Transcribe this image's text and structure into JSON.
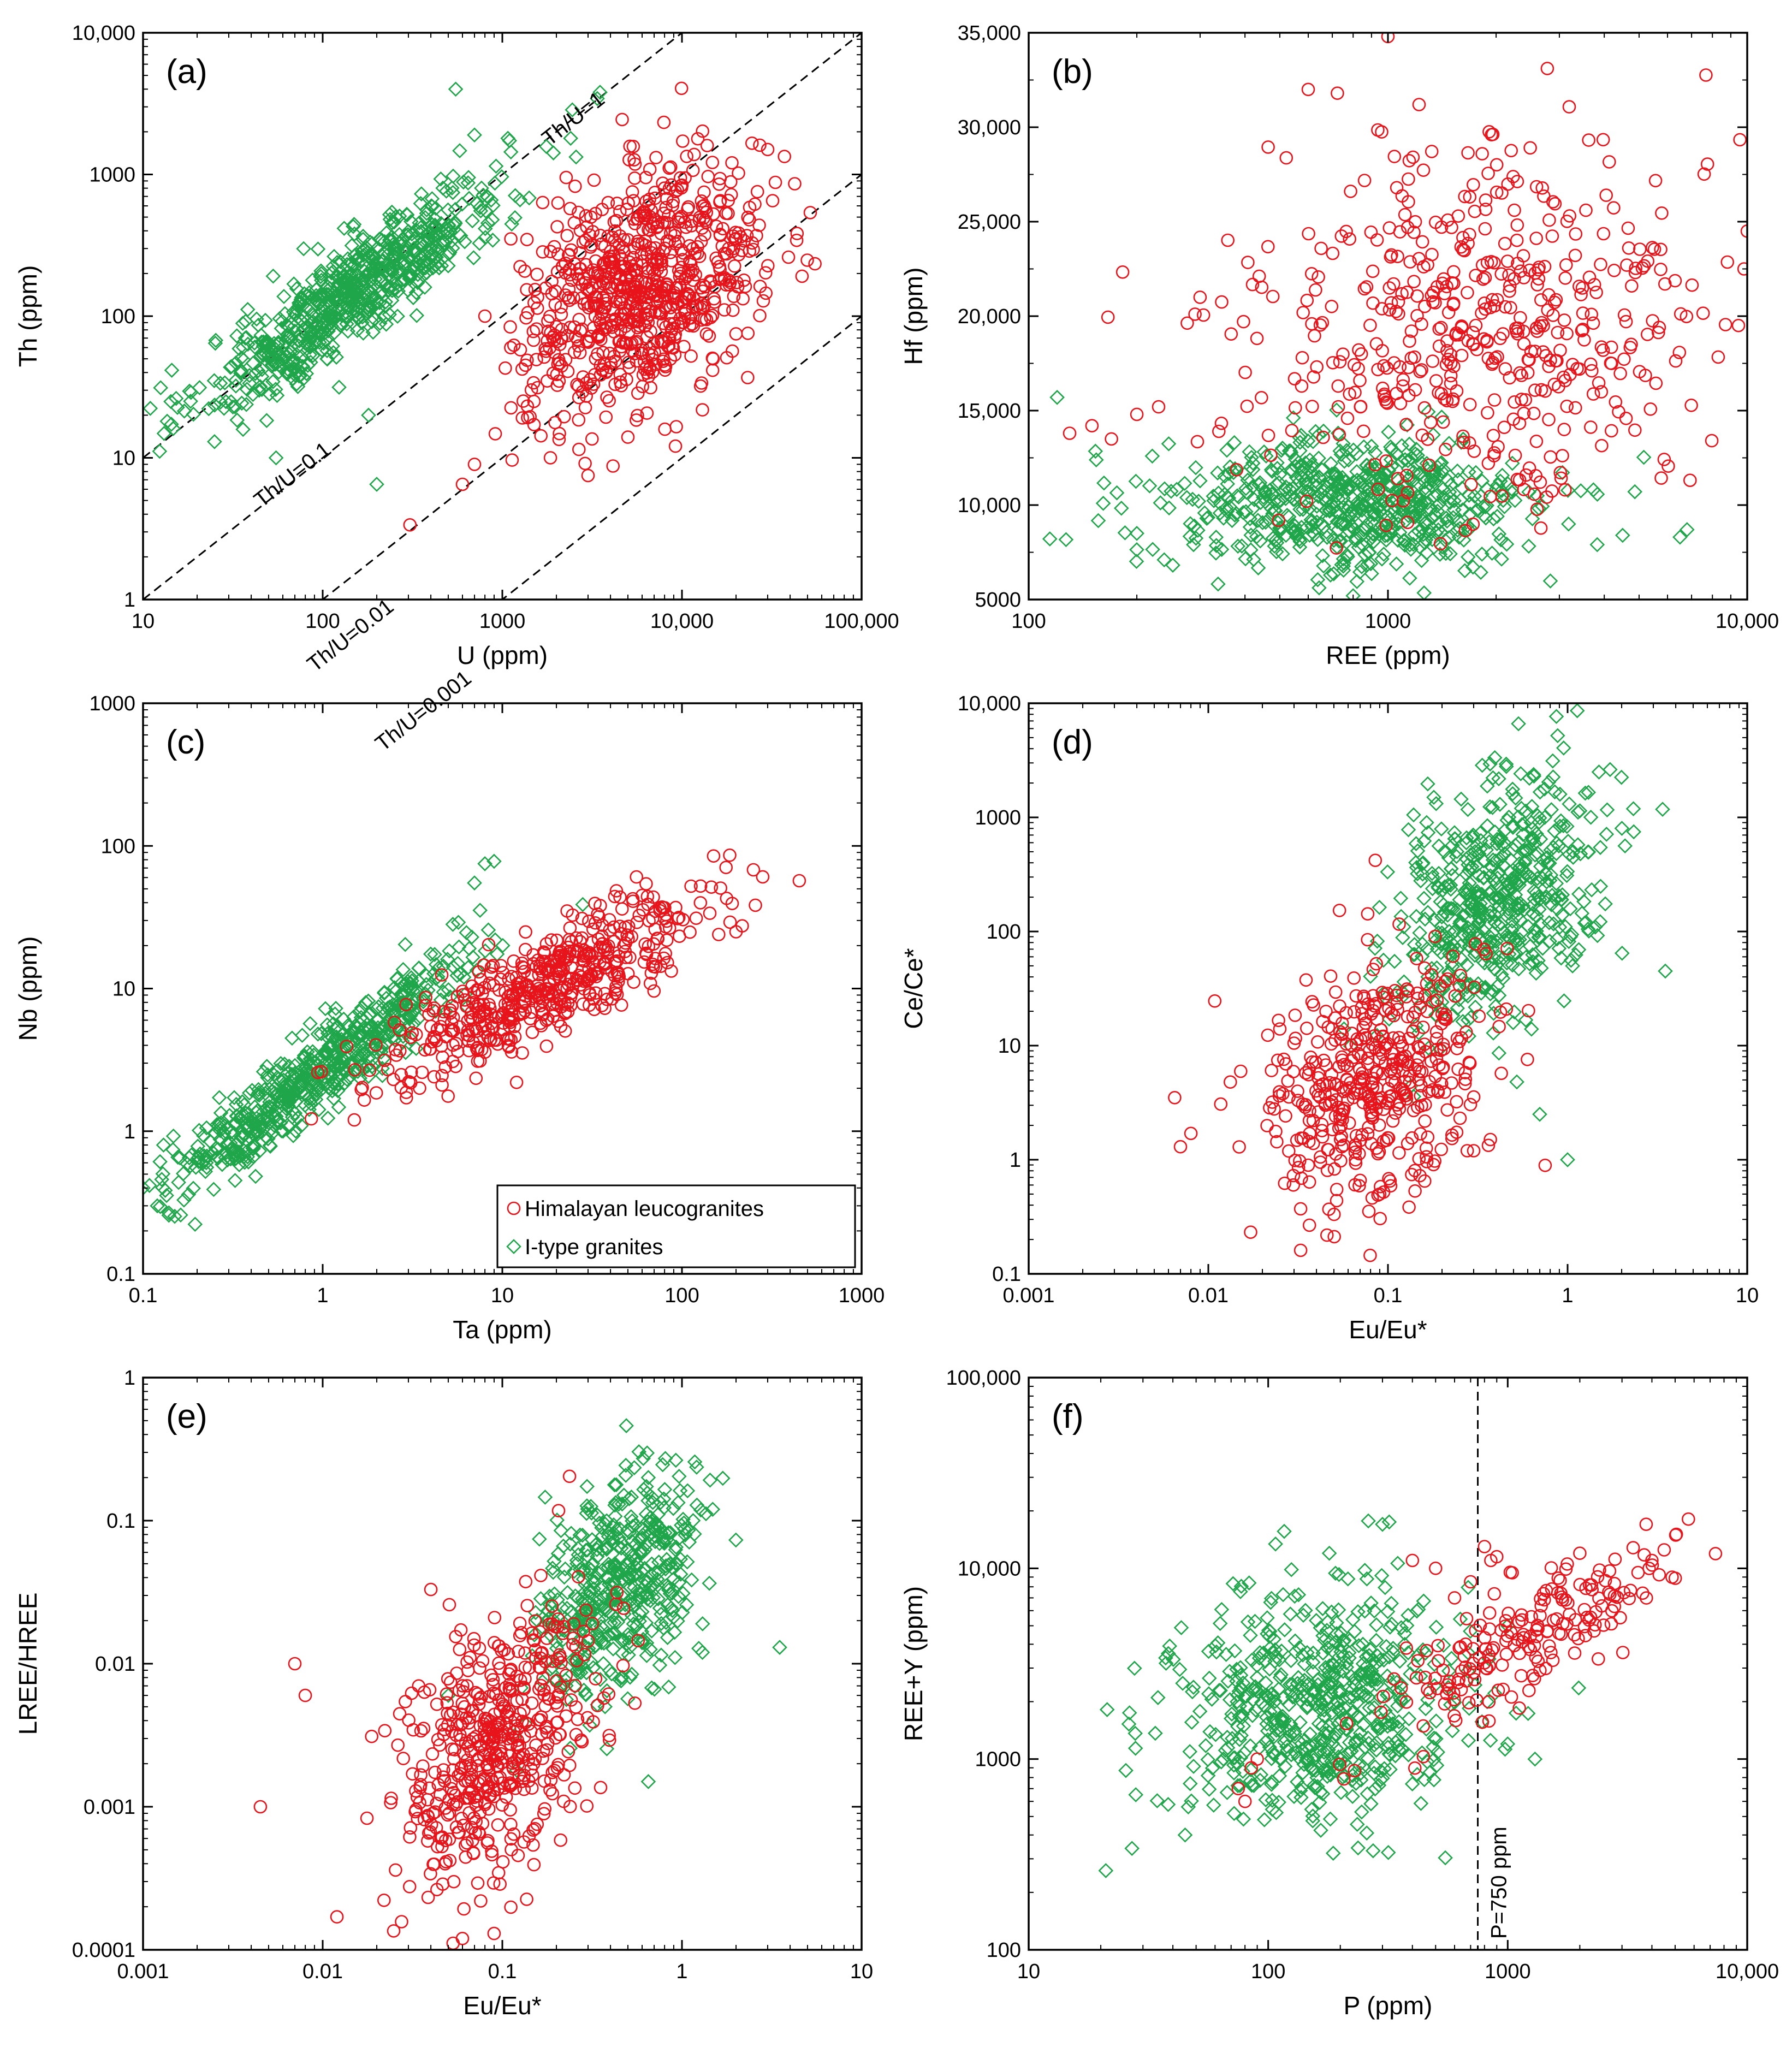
{
  "colors": {
    "himalayan": "#e8141b",
    "itype": "#1fa64a",
    "axis": "#000000",
    "background": "#ffffff"
  },
  "legend": {
    "panel": "c",
    "placement": "bottom-right",
    "items": [
      {
        "label": "Himalayan leucogranites",
        "marker": "circle",
        "color": "#e8141b"
      },
      {
        "label": "I-type granites",
        "marker": "diamond",
        "color": "#1fa64a"
      }
    ]
  },
  "chart_data": [
    {
      "id": "a",
      "type": "scatter",
      "tag": "(a)",
      "xlabel": "U (ppm)",
      "ylabel": "Th (ppm)",
      "xscale": "log",
      "yscale": "log",
      "xlim": [
        10,
        100000
      ],
      "ylim": [
        1,
        10000
      ],
      "xticks": [
        10,
        100,
        1000,
        10000,
        100000
      ],
      "xtick_labels": [
        "10",
        "100",
        "1000",
        "10,000",
        "100,000"
      ],
      "yticks": [
        1,
        10,
        100,
        1000,
        10000
      ],
      "ytick_labels": [
        "1",
        "10",
        "100",
        "1000",
        "10,000"
      ],
      "reference_lines": [
        {
          "label": "Th/U=1",
          "ratio": 1
        },
        {
          "label": "Th/U=0.1",
          "ratio": 0.1
        },
        {
          "label": "Th/U=0.01",
          "ratio": 0.01
        },
        {
          "label": "Th/U=0.001",
          "ratio": 0.001
        }
      ],
      "series": [
        {
          "name": "Himalayan leucogranites",
          "marker": "circle",
          "n": 800,
          "cluster": {
            "x_center": 6000,
            "y_center": 160,
            "x_log_sd": 0.33,
            "y_log_sd": 0.42,
            "corr": 0.35
          },
          "points": [
            [
              3000,
              7.5
            ],
            [
              700,
              9
            ],
            [
              600,
              6.5
            ],
            [
              5000,
              14
            ],
            [
              30000,
              1500
            ],
            [
              20000,
              75
            ],
            [
              1500,
              25
            ],
            [
              800,
              100
            ]
          ]
        },
        {
          "name": "I-type granites",
          "marker": "diamond",
          "n": 700,
          "cluster": {
            "x_center": 150,
            "y_center": 150,
            "x_log_sd": 0.42,
            "y_log_sd": 0.42,
            "corr": 0.9
          },
          "points": [
            [
              3500,
              3800
            ],
            [
              2400,
              1800
            ],
            [
              550,
              4000
            ],
            [
              700,
              1900
            ],
            [
              25,
              13
            ],
            [
              55,
              10
            ],
            [
              200,
              6.5
            ],
            [
              180,
              20
            ]
          ]
        }
      ]
    },
    {
      "id": "b",
      "type": "scatter",
      "tag": "(b)",
      "xlabel": "REE (ppm)",
      "ylabel": "Hf (ppm)",
      "xscale": "log",
      "yscale": "linear",
      "xlim": [
        100,
        10000
      ],
      "ylim": [
        5000,
        35000
      ],
      "xticks": [
        100,
        1000,
        10000
      ],
      "xtick_labels": [
        "100",
        "1000",
        "10,000"
      ],
      "yticks": [
        5000,
        10000,
        15000,
        20000,
        25000,
        30000,
        35000
      ],
      "ytick_labels": [
        "5000",
        "10,000",
        "15,000",
        "20,000",
        "25,000",
        "30,000",
        "35,000"
      ],
      "series": [
        {
          "name": "Himalayan leucogranites",
          "marker": "circle",
          "n": 520,
          "cluster": {
            "x_center": 1900,
            "y_center": 19500,
            "x_log_sd": 0.32,
            "y_sd": 4800
          },
          "points": [
            [
              130,
              13800
            ],
            [
              150,
              14200
            ],
            [
              170,
              13500
            ],
            [
              200,
              14800
            ],
            [
              230,
              15200
            ],
            [
              1000,
              34800
            ],
            [
              10000,
              24500
            ],
            [
              9800,
              22500
            ],
            [
              600,
              32000
            ],
            [
              300,
              21000
            ]
          ]
        },
        {
          "name": "I-type granites",
          "marker": "diamond",
          "n": 650,
          "cluster": {
            "x_center": 780,
            "y_center": 10000,
            "x_log_sd": 0.26,
            "y_sd": 1800
          },
          "points": [
            [
              120,
              15700
            ],
            [
              6800,
              8700
            ],
            [
              6500,
              8300
            ],
            [
              800,
              5200
            ],
            [
              200,
              8500
            ],
            [
              4500,
              8400
            ]
          ]
        }
      ]
    },
    {
      "id": "c",
      "type": "scatter",
      "tag": "(c)",
      "xlabel": "Ta (ppm)",
      "ylabel": "Nb (ppm)",
      "xscale": "log",
      "yscale": "log",
      "xlim": [
        0.1,
        1000
      ],
      "ylim": [
        0.1,
        1000
      ],
      "xticks": [
        0.1,
        1,
        10,
        100,
        1000
      ],
      "xtick_labels": [
        "0.1",
        "1",
        "10",
        "100",
        "1000"
      ],
      "yticks": [
        0.1,
        1,
        10,
        100,
        1000
      ],
      "ytick_labels": [
        "0.1",
        "1",
        "10",
        "100",
        "1000"
      ],
      "series": [
        {
          "name": "Himalayan leucogranites",
          "marker": "circle",
          "n": 520,
          "cluster": {
            "x_center": 18,
            "y_center": 11,
            "x_log_sd": 0.45,
            "y_log_sd": 0.32,
            "corr": 0.85
          },
          "points": [
            [
              450,
              57
            ],
            [
              250,
              68
            ],
            [
              150,
              85
            ],
            [
              1.5,
              1.2
            ],
            [
              12,
              2.2
            ],
            [
              200,
              25
            ]
          ]
        },
        {
          "name": "I-type granites",
          "marker": "diamond",
          "n": 620,
          "cluster": {
            "x_center": 0.9,
            "y_center": 2.5,
            "x_log_sd": 0.4,
            "y_log_sd": 0.4,
            "corr": 0.93
          },
          "points": [
            [
              0.12,
              0.3
            ],
            [
              0.1,
              0.4
            ],
            [
              0.13,
              0.8
            ],
            [
              8,
              75
            ],
            [
              9,
              78
            ],
            [
              7,
              55
            ]
          ]
        }
      ]
    },
    {
      "id": "d",
      "type": "scatter",
      "tag": "(d)",
      "xlabel": "Eu/Eu*",
      "ylabel": "Ce/Ce*",
      "xscale": "log",
      "yscale": "log",
      "xlim": [
        0.001,
        10
      ],
      "ylim": [
        0.1,
        10000
      ],
      "xticks": [
        0.001,
        0.01,
        0.1,
        1,
        10
      ],
      "xtick_labels": [
        "0.001",
        "0.01",
        "0.1",
        "1",
        "10"
      ],
      "yticks": [
        0.1,
        1,
        10,
        100,
        1000,
        10000
      ],
      "ytick_labels": [
        "0.1",
        "1",
        "10",
        "100",
        "1000",
        "10,000"
      ],
      "series": [
        {
          "name": "Himalayan leucogranites",
          "marker": "circle",
          "n": 460,
          "cluster": {
            "x_center": 0.085,
            "y_center": 5,
            "x_log_sd": 0.3,
            "y_log_sd": 0.55,
            "corr": 0.35
          },
          "points": [
            [
              0.007,
              1.3
            ],
            [
              0.008,
              1.7
            ],
            [
              0.0065,
              3.5
            ],
            [
              0.09,
              0.5
            ],
            [
              0.085,
              420
            ],
            [
              0.3,
              1.2
            ]
          ]
        },
        {
          "name": "I-type granites",
          "marker": "diamond",
          "n": 560,
          "cluster": {
            "x_center": 0.4,
            "y_center": 180,
            "x_log_sd": 0.3,
            "y_log_sd": 0.55,
            "corr": 0.45
          },
          "points": [
            [
              3.5,
              45
            ],
            [
              1.3,
              105
            ],
            [
              1.0,
              1.0
            ],
            [
              0.18,
              1500
            ],
            [
              0.65,
              2300
            ],
            [
              0.7,
              2.5
            ]
          ]
        }
      ]
    },
    {
      "id": "e",
      "type": "scatter",
      "tag": "(e)",
      "xlabel": "Eu/Eu*",
      "ylabel": "LREE/HREE",
      "xscale": "log",
      "yscale": "log",
      "xlim": [
        0.001,
        10
      ],
      "ylim": [
        0.0001,
        1
      ],
      "xticks": [
        0.001,
        0.01,
        0.1,
        1,
        10
      ],
      "xtick_labels": [
        "0.001",
        "0.01",
        "0.1",
        "1",
        "10"
      ],
      "yticks": [
        0.0001,
        0.001,
        0.01,
        0.1,
        1
      ],
      "ytick_labels": [
        "0.0001",
        "0.001",
        "0.01",
        "0.1",
        "1"
      ],
      "series": [
        {
          "name": "Himalayan leucogranites",
          "marker": "circle",
          "n": 520,
          "cluster": {
            "x_center": 0.09,
            "y_center": 0.0025,
            "x_log_sd": 0.28,
            "y_log_sd": 0.5,
            "corr": 0.45
          },
          "points": [
            [
              0.0045,
              0.001
            ],
            [
              0.007,
              0.01
            ],
            [
              0.008,
              0.006
            ],
            [
              0.012,
              0.00017
            ],
            [
              0.09,
              0.00013
            ],
            [
              0.06,
              0.00012
            ],
            [
              0.04,
              0.033
            ]
          ]
        },
        {
          "name": "I-type granites",
          "marker": "diamond",
          "n": 480,
          "cluster": {
            "x_center": 0.45,
            "y_center": 0.035,
            "x_log_sd": 0.22,
            "y_log_sd": 0.4,
            "corr": 0.4
          },
          "points": [
            [
              3.5,
              0.013
            ],
            [
              1.3,
              0.012
            ],
            [
              0.65,
              0.0015
            ],
            [
              0.65,
              0.2
            ],
            [
              0.05,
              0.006
            ]
          ]
        }
      ]
    },
    {
      "id": "f",
      "type": "scatter",
      "tag": "(f)",
      "xlabel": "P (ppm)",
      "ylabel": "REE+Y (ppm)",
      "xscale": "log",
      "yscale": "log",
      "xlim": [
        10,
        10000
      ],
      "ylim": [
        100,
        100000
      ],
      "xticks": [
        10,
        100,
        1000,
        10000
      ],
      "xtick_labels": [
        "10",
        "100",
        "1000",
        "10,000"
      ],
      "yticks": [
        100,
        1000,
        10000,
        100000
      ],
      "ytick_labels": [
        "100",
        "1000",
        "10,000",
        "100,000"
      ],
      "reference_lines": [
        {
          "label": "P=750 ppm",
          "x": 750
        }
      ],
      "series": [
        {
          "name": "Himalayan leucogranites",
          "marker": "circle",
          "n": 210,
          "cluster": {
            "x_center": 1200,
            "y_center": 4200,
            "x_log_sd": 0.32,
            "y_log_sd": 0.25,
            "corr": 0.85
          },
          "points": [
            [
              4500,
              12500
            ],
            [
              4000,
              11000
            ],
            [
              3500,
              9500
            ],
            [
              2000,
              12000
            ],
            [
              800,
              13000
            ],
            [
              850,
              11000
            ],
            [
              900,
              11500
            ],
            [
              80,
              600
            ],
            [
              85,
              900
            ],
            [
              90,
              1000
            ],
            [
              75,
              700
            ],
            [
              500,
              10000
            ],
            [
              400,
              11000
            ],
            [
              600,
              7000
            ],
            [
              700,
              8500
            ]
          ]
        },
        {
          "name": "I-type granites",
          "marker": "diamond",
          "n": 620,
          "cluster": {
            "x_center": 160,
            "y_center": 1800,
            "x_log_sd": 0.3,
            "y_log_sd": 0.3,
            "corr": 0.1
          },
          "points": [
            [
              21,
              260
            ],
            [
              27,
              340
            ],
            [
              28,
              650
            ],
            [
              45,
              400
            ],
            [
              320,
              17500
            ],
            [
              300,
              17000
            ],
            [
              1000,
              1200
            ],
            [
              1300,
              1000
            ],
            [
              1000,
              5000
            ],
            [
              180,
              12000
            ]
          ]
        }
      ]
    }
  ]
}
